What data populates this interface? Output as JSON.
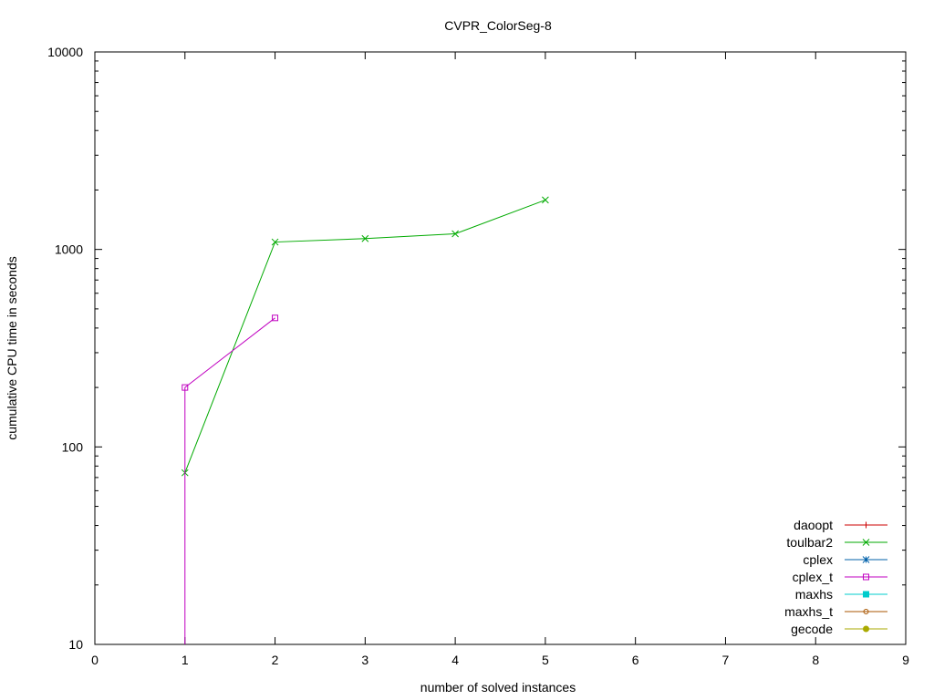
{
  "chart_data": {
    "type": "line",
    "title": "CVPR_ColorSeg-8",
    "xlabel": "number of solved instances",
    "ylabel": "cumulative CPU time in seconds",
    "xlim": [
      0,
      9
    ],
    "ylim": [
      10,
      10000
    ],
    "yscale": "log",
    "grid": false,
    "legend_position": "bottom-right",
    "x_ticks": [
      0,
      1,
      2,
      3,
      4,
      5,
      6,
      7,
      8,
      9
    ],
    "y_ticks": [
      10,
      100,
      1000,
      10000
    ],
    "series": [
      {
        "name": "daoopt",
        "color": "#cc0000",
        "marker": "plus",
        "x": [],
        "y": []
      },
      {
        "name": "toulbar2",
        "color": "#00aa00",
        "marker": "cross",
        "x": [
          1,
          2,
          3,
          4,
          5
        ],
        "y": [
          74,
          1090,
          1135,
          1200,
          1780
        ]
      },
      {
        "name": "cplex",
        "color": "#0060aa",
        "marker": "star",
        "x": [],
        "y": []
      },
      {
        "name": "cplex_t",
        "color": "#c000c0",
        "marker": "square",
        "x": [
          1,
          1,
          2
        ],
        "y": [
          10,
          200,
          450
        ]
      },
      {
        "name": "maxhs",
        "color": "#00cccc",
        "marker": "filled-square",
        "x": [],
        "y": []
      },
      {
        "name": "maxhs_t",
        "color": "#aa5500",
        "marker": "circle",
        "x": [],
        "y": []
      },
      {
        "name": "gecode",
        "color": "#aaaa00",
        "marker": "filled-circle",
        "x": [],
        "y": []
      }
    ]
  }
}
